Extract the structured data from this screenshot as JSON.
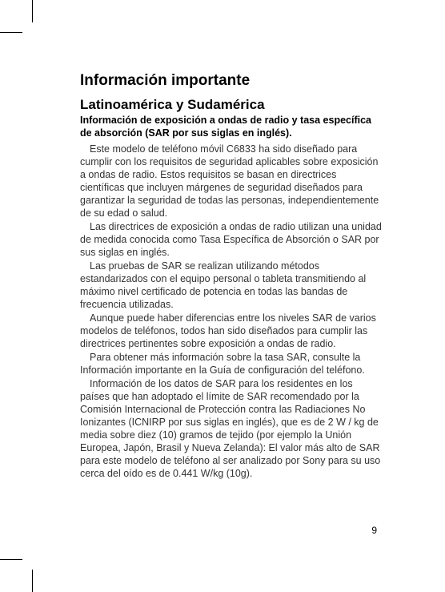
{
  "title": {
    "text": "Información importante",
    "fontsize": 19,
    "lineheight": 1.2
  },
  "subtitle": {
    "text": "Latinoamérica y Sudamérica",
    "fontsize": 17,
    "lineheight": 1.2
  },
  "subheading": {
    "text": "Información de exposición a ondas de radio y tasa específica de absorción (SAR por sus siglas en inglés).",
    "fontsize": 12.5,
    "lineheight": 1.25
  },
  "body": {
    "fontsize": 12.5,
    "lineheight": 1.28,
    "color": "#333333",
    "paragraphs": [
      "Este modelo de teléfono móvil C6833 ha sido diseñado para cumplir con los requisitos de seguridad aplicables sobre exposición a ondas de radio. Estos requisitos se basan en directrices científicas que incluyen márgenes de seguridad diseñados para garantizar la seguridad de todas las personas, independientemente de su edad o salud.",
      "Las directrices de exposición a ondas de radio utilizan una unidad de medida conocida como Tasa Específica de Absorción o SAR por sus siglas en inglés.",
      "Las pruebas de SAR se realizan utilizando métodos estandarizados con el equipo personal o tableta transmitiendo al máximo nivel certificado de potencia en todas las bandas de frecuencia utilizadas.",
      "Aunque puede haber diferencias entre los niveles SAR de varios modelos de teléfonos, todos han sido diseñados para cumplir las directrices pertinentes sobre exposición a ondas de radio.",
      "Para obtener más información sobre la tasa SAR, consulte la Información importante en la Guía de configuración del teléfono.",
      "Información de los datos de SAR para los residentes en los países que han adoptado el límite de SAR recomendado por la Comisión Internacional de Protección contra las Radiaciones No Ionizantes (ICNIRP por sus siglas en inglés), que es de 2 W / kg de media sobre diez (10) gramos de tejido (por ejemplo la Unión Europea, Japón, Brasil y Nueva Zelanda): El valor más alto de SAR para este modelo de teléfono al ser analizado por Sony para su uso cerca del oído es de 0.441 W/kg (10g)."
    ]
  },
  "page_number": "9",
  "background": "#ffffff"
}
